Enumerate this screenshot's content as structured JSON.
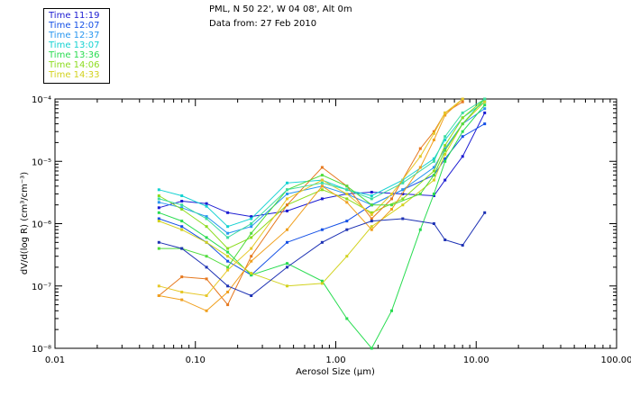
{
  "header": {
    "location": "PML, N 50 22', W 04 08', Alt 0m",
    "date": "Data from: 27 Feb 2010"
  },
  "chart_data": {
    "type": "line",
    "xlabel": "Aerosol Size (µm)",
    "ylabel": "dV/d(log R) (cm³/cm⁻³)",
    "xscale": "log",
    "yscale": "log",
    "xlim": [
      0.01,
      100
    ],
    "ylim": [
      1e-08,
      0.0001
    ],
    "x_tick_labels": [
      "0.01",
      "0.10",
      "1.00",
      "10.00",
      "100.00"
    ],
    "y_tick_labels": [
      "10⁻⁴",
      "10⁻⁵",
      "10⁻⁶",
      "10⁻⁷",
      "10⁻⁸"
    ],
    "legend_placement": "top-left outside",
    "series": [
      {
        "name": "Time 11:19",
        "color": "#1c1cd2",
        "points": [
          [
            0.055,
            1.8e-06
          ],
          [
            0.08,
            2.3e-06
          ],
          [
            0.12,
            2.1e-06
          ],
          [
            0.17,
            1.5e-06
          ],
          [
            0.25,
            1.3e-06
          ],
          [
            0.45,
            1.6e-06
          ],
          [
            0.8,
            2.5e-06
          ],
          [
            1.2,
            3e-06
          ],
          [
            1.8,
            3.2e-06
          ],
          [
            3,
            3e-06
          ],
          [
            5,
            2.8e-06
          ],
          [
            6,
            5e-06
          ],
          [
            8,
            1.2e-05
          ],
          [
            11.5,
            6e-05
          ]
        ]
      },
      {
        "name": "Time 12:07",
        "color": "#1450e6",
        "points": [
          [
            0.055,
            1.2e-06
          ],
          [
            0.08,
            9e-07
          ],
          [
            0.12,
            5e-07
          ],
          [
            0.17,
            2.5e-07
          ],
          [
            0.25,
            1.5e-07
          ],
          [
            0.45,
            5e-07
          ],
          [
            0.8,
            8e-07
          ],
          [
            1.2,
            1.1e-06
          ],
          [
            1.8,
            2e-06
          ],
          [
            3,
            3.5e-06
          ],
          [
            5,
            6e-06
          ],
          [
            6,
            1.1e-05
          ],
          [
            8,
            2.5e-05
          ],
          [
            11.5,
            4e-05
          ]
        ]
      },
      {
        "name": "Time 12:37",
        "color": "#2896f0",
        "points": [
          [
            0.055,
            2.2e-06
          ],
          [
            0.08,
            1.8e-06
          ],
          [
            0.12,
            1.3e-06
          ],
          [
            0.17,
            7e-07
          ],
          [
            0.25,
            9e-07
          ],
          [
            0.45,
            3e-06
          ],
          [
            0.8,
            4e-06
          ],
          [
            1.2,
            3e-06
          ],
          [
            1.8,
            2e-06
          ],
          [
            3,
            3.5e-06
          ],
          [
            5,
            8e-06
          ],
          [
            6,
            1.6e-05
          ],
          [
            8,
            4e-05
          ],
          [
            11.5,
            7e-05
          ]
        ]
      },
      {
        "name": "Time 13:07",
        "color": "#14d2d2",
        "points": [
          [
            0.055,
            3.5e-06
          ],
          [
            0.08,
            2.8e-06
          ],
          [
            0.12,
            1.9e-06
          ],
          [
            0.17,
            9e-07
          ],
          [
            0.25,
            1.2e-06
          ],
          [
            0.45,
            4.5e-06
          ],
          [
            0.8,
            5e-06
          ],
          [
            1.2,
            3.5e-06
          ],
          [
            1.8,
            2.8e-06
          ],
          [
            3,
            5e-06
          ],
          [
            5,
            1.1e-05
          ],
          [
            6,
            2.2e-05
          ],
          [
            8,
            5e-05
          ],
          [
            11.5,
            9e-05
          ]
        ]
      },
      {
        "name": "Time 13:36",
        "color": "#28dc50",
        "points": [
          [
            0.055,
            1.5e-06
          ],
          [
            0.08,
            1.1e-06
          ],
          [
            0.12,
            6e-07
          ],
          [
            0.17,
            3.5e-07
          ],
          [
            0.25,
            1.5e-07
          ],
          [
            0.45,
            2.3e-07
          ],
          [
            0.8,
            1.2e-07
          ],
          [
            1.2,
            3e-08
          ],
          [
            1.8,
            1e-08
          ],
          [
            2.5,
            4e-08
          ],
          [
            4,
            8e-07
          ],
          [
            5,
            3e-06
          ],
          [
            6,
            1e-05
          ],
          [
            8,
            3e-05
          ],
          [
            11.5,
            8e-05
          ]
        ]
      },
      {
        "name": "Time 14:06",
        "color": "#8cdc1e",
        "points": [
          [
            0.055,
            2.8e-06
          ],
          [
            0.08,
            1.7e-06
          ],
          [
            0.12,
            9e-07
          ],
          [
            0.17,
            4e-07
          ],
          [
            0.25,
            6e-07
          ],
          [
            0.45,
            2e-06
          ],
          [
            0.8,
            3.5e-06
          ],
          [
            1.2,
            2.5e-06
          ],
          [
            1.8,
            1.5e-06
          ],
          [
            3,
            2.5e-06
          ],
          [
            5,
            7e-06
          ],
          [
            6,
            1.8e-05
          ],
          [
            8,
            5e-05
          ],
          [
            11.5,
            0.0001
          ]
        ]
      },
      {
        "name": "Time 14:33",
        "color": "#d2d21e",
        "points": [
          [
            0.055,
            1.1e-06
          ],
          [
            0.08,
            8e-07
          ],
          [
            0.12,
            5e-07
          ],
          [
            0.17,
            3e-07
          ],
          [
            0.25,
            1.6e-07
          ],
          [
            0.45,
            1e-07
          ],
          [
            0.8,
            1.1e-07
          ],
          [
            1.2,
            3e-07
          ],
          [
            1.8,
            9e-07
          ],
          [
            3,
            2e-06
          ],
          [
            5,
            5e-06
          ],
          [
            6,
            1.3e-05
          ],
          [
            8,
            4e-05
          ],
          [
            11.5,
            9e-05
          ]
        ]
      },
      {
        "name": "",
        "color": "#e6781e",
        "points": [
          [
            0.055,
            7e-08
          ],
          [
            0.08,
            1.4e-07
          ],
          [
            0.12,
            1.3e-07
          ],
          [
            0.17,
            5e-08
          ],
          [
            0.25,
            3e-07
          ],
          [
            0.45,
            2e-06
          ],
          [
            0.8,
            8e-06
          ],
          [
            1.2,
            4e-06
          ],
          [
            1.8,
            1.2e-06
          ],
          [
            2.5,
            2.5e-06
          ],
          [
            4,
            1.6e-05
          ],
          [
            5,
            3e-05
          ],
          [
            6,
            6e-05
          ],
          [
            8,
            9e-05
          ]
        ]
      },
      {
        "name": "",
        "color": "#f0a01e",
        "points": [
          [
            0.055,
            7e-08
          ],
          [
            0.08,
            6e-08
          ],
          [
            0.12,
            4e-08
          ],
          [
            0.17,
            8e-08
          ],
          [
            0.25,
            2.5e-07
          ],
          [
            0.45,
            8e-07
          ],
          [
            0.8,
            4e-06
          ],
          [
            1.2,
            2.2e-06
          ],
          [
            1.8,
            8e-07
          ],
          [
            2.5,
            1.7e-06
          ],
          [
            4,
            8e-06
          ],
          [
            5,
            2.2e-05
          ],
          [
            6,
            5.5e-05
          ],
          [
            8,
            0.0001
          ]
        ]
      },
      {
        "name": "",
        "color": "#e6c828",
        "points": [
          [
            0.055,
            1e-07
          ],
          [
            0.08,
            8e-08
          ],
          [
            0.12,
            7e-08
          ],
          [
            0.17,
            1.8e-07
          ],
          [
            0.25,
            4e-07
          ],
          [
            0.45,
            2.5e-06
          ],
          [
            0.8,
            5e-06
          ],
          [
            1.2,
            3e-06
          ],
          [
            1.8,
            1.4e-06
          ],
          [
            2.5,
            3e-06
          ],
          [
            4,
            1.2e-05
          ],
          [
            5,
            2.8e-05
          ],
          [
            6,
            6e-05
          ],
          [
            8,
            0.00011
          ]
        ]
      },
      {
        "name": "",
        "color": "#50dc3c",
        "points": [
          [
            0.055,
            4e-07
          ],
          [
            0.08,
            4e-07
          ],
          [
            0.12,
            3e-07
          ],
          [
            0.17,
            2e-07
          ],
          [
            0.25,
            7e-07
          ],
          [
            0.45,
            3.5e-06
          ],
          [
            0.8,
            6e-06
          ],
          [
            1.2,
            4e-06
          ],
          [
            1.8,
            2e-06
          ],
          [
            2.5,
            2e-06
          ],
          [
            4,
            3e-06
          ],
          [
            5,
            6e-06
          ],
          [
            6,
            1.5e-05
          ],
          [
            8,
            4e-05
          ],
          [
            11.5,
            0.0001
          ]
        ]
      },
      {
        "name": "",
        "color": "#1e32b4",
        "points": [
          [
            0.055,
            5e-07
          ],
          [
            0.08,
            4e-07
          ],
          [
            0.12,
            2e-07
          ],
          [
            0.17,
            1e-07
          ],
          [
            0.25,
            7e-08
          ],
          [
            0.45,
            2e-07
          ],
          [
            0.8,
            5e-07
          ],
          [
            1.2,
            8e-07
          ],
          [
            1.8,
            1.1e-06
          ],
          [
            3,
            1.2e-06
          ],
          [
            5,
            1e-06
          ],
          [
            6,
            5.5e-07
          ],
          [
            8,
            4.5e-07
          ],
          [
            11.5,
            1.5e-06
          ]
        ]
      },
      {
        "name": "",
        "color": "#3cdca0",
        "points": [
          [
            0.055,
            2.5e-06
          ],
          [
            0.08,
            2e-06
          ],
          [
            0.12,
            1.2e-06
          ],
          [
            0.17,
            6e-07
          ],
          [
            0.25,
            1e-06
          ],
          [
            0.45,
            3.5e-06
          ],
          [
            0.8,
            4.5e-06
          ],
          [
            1.2,
            3.5e-06
          ],
          [
            1.8,
            2.5e-06
          ],
          [
            3,
            4.5e-06
          ],
          [
            5,
            1e-05
          ],
          [
            6,
            2.5e-05
          ],
          [
            8,
            6e-05
          ],
          [
            11.5,
            0.0001
          ]
        ]
      }
    ]
  }
}
